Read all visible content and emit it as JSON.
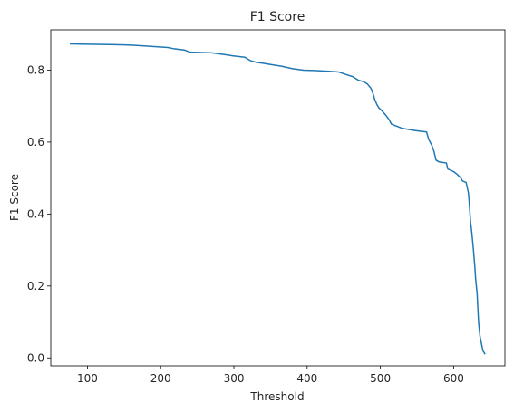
{
  "chart_data": {
    "type": "line",
    "title": "F1 Score",
    "xlabel": "Threshold",
    "ylabel": "F1 Score",
    "xlim": [
      50,
      670
    ],
    "ylim": [
      -0.022,
      0.912
    ],
    "xticks": [
      100,
      200,
      300,
      400,
      500,
      600
    ],
    "yticks": [
      0.0,
      0.2,
      0.4,
      0.6,
      0.8
    ],
    "ytick_labels": [
      "0.0",
      "0.2",
      "0.4",
      "0.6",
      "0.8"
    ],
    "grid": false,
    "colors": {
      "line": "#1f77b4",
      "axes": "#000000",
      "text": "#262626"
    },
    "series": [
      {
        "x": [
          76,
          100,
          130,
          157,
          180,
          210,
          217,
          232,
          240,
          270,
          285,
          298,
          315,
          322,
          330,
          340,
          352,
          365,
          380,
          395,
          410,
          430,
          443,
          453,
          462,
          470,
          477,
          482,
          487,
          490,
          492,
          495,
          498,
          503,
          508,
          512,
          515,
          520,
          530,
          548,
          563,
          566,
          570,
          573,
          576,
          580,
          590,
          592,
          600,
          605,
          610,
          612,
          617,
          620,
          621,
          623,
          625,
          627,
          629,
          630,
          632,
          634,
          635,
          636,
          638,
          640,
          643
        ],
        "y": [
          0.873,
          0.872,
          0.871,
          0.87,
          0.867,
          0.863,
          0.86,
          0.856,
          0.85,
          0.848,
          0.844,
          0.84,
          0.836,
          0.827,
          0.822,
          0.819,
          0.815,
          0.811,
          0.804,
          0.8,
          0.799,
          0.797,
          0.795,
          0.788,
          0.782,
          0.772,
          0.768,
          0.762,
          0.75,
          0.735,
          0.72,
          0.705,
          0.695,
          0.685,
          0.673,
          0.662,
          0.65,
          0.646,
          0.638,
          0.632,
          0.628,
          0.607,
          0.592,
          0.575,
          0.55,
          0.545,
          0.542,
          0.525,
          0.518,
          0.51,
          0.5,
          0.492,
          0.488,
          0.46,
          0.44,
          0.38,
          0.345,
          0.3,
          0.25,
          0.22,
          0.18,
          0.1,
          0.08,
          0.06,
          0.04,
          0.02,
          0.01
        ]
      }
    ]
  }
}
